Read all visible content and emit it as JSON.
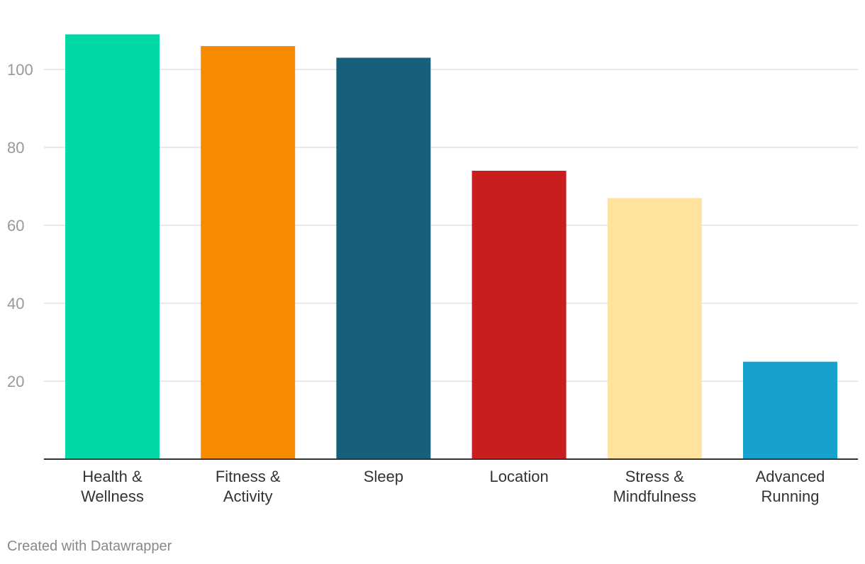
{
  "chart_data": {
    "type": "bar",
    "categories": [
      [
        "Health &",
        "Wellness"
      ],
      [
        "Fitness &",
        "Activity"
      ],
      [
        "Sleep"
      ],
      [
        "Location"
      ],
      [
        "Stress &",
        "Mindfulness"
      ],
      [
        "Advanced",
        "Running"
      ]
    ],
    "values": [
      109,
      106,
      103,
      74,
      67,
      25
    ],
    "colors": [
      "#00d9a6",
      "#f78b00",
      "#17607b",
      "#c91d1f",
      "#ffe39c",
      "#19a1ce"
    ],
    "yticks": [
      20,
      40,
      60,
      80,
      100
    ],
    "ylim": [
      0,
      115
    ],
    "grid": true,
    "title": "",
    "xlabel": "",
    "ylabel": ""
  },
  "footer": {
    "credit": "Created with Datawrapper"
  }
}
